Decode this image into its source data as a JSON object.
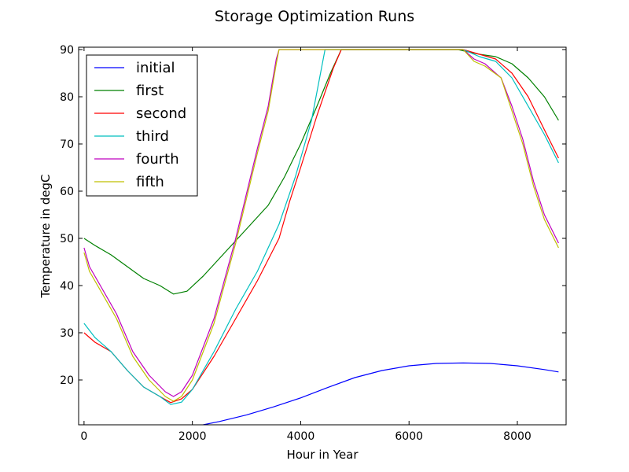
{
  "chart_data": {
    "type": "line",
    "title": "Storage Optimization Runs",
    "xlabel": "Hour in Year",
    "ylabel": "Temperature in degC",
    "xlim": [
      -100,
      8900
    ],
    "ylim": [
      10.5,
      90.5
    ],
    "xticks": [
      0,
      2000,
      4000,
      6000,
      8000
    ],
    "yticks": [
      20,
      30,
      40,
      50,
      60,
      70,
      80,
      90
    ],
    "grid": false,
    "legend_position": "top-left",
    "series": [
      {
        "name": "initial",
        "color": "#0000ff",
        "x": [
          2200,
          2500,
          3000,
          3500,
          4000,
          4500,
          5000,
          5500,
          6000,
          6500,
          7000,
          7500,
          8000,
          8500,
          8760
        ],
        "y": [
          10.5,
          11.2,
          12.6,
          14.3,
          16.2,
          18.4,
          20.5,
          22.0,
          23.0,
          23.5,
          23.6,
          23.5,
          23.0,
          22.2,
          21.7
        ]
      },
      {
        "name": "first",
        "color": "#008000",
        "x": [
          0,
          200,
          500,
          800,
          1100,
          1400,
          1650,
          1900,
          2200,
          2600,
          3000,
          3400,
          3700,
          4000,
          4300,
          4550,
          4750,
          5000,
          5500,
          6000,
          6500,
          6900,
          7100,
          7300,
          7600,
          7900,
          8200,
          8500,
          8760
        ],
        "y": [
          50,
          48.5,
          46.5,
          44,
          41.5,
          40,
          38.2,
          38.8,
          42,
          47,
          52,
          57,
          63,
          70,
          78,
          85,
          90,
          90,
          90,
          90,
          90,
          90,
          89.5,
          89,
          88.5,
          87,
          84,
          80,
          75
        ]
      },
      {
        "name": "second",
        "color": "#ff0000",
        "x": [
          0,
          200,
          500,
          800,
          1100,
          1400,
          1600,
          1800,
          2000,
          2400,
          2800,
          3200,
          3600,
          3800,
          4000,
          4300,
          4600,
          4750,
          5000,
          5500,
          6000,
          6500,
          7000,
          7300,
          7600,
          7900,
          8200,
          8500,
          8760
        ],
        "y": [
          30,
          28,
          26,
          22,
          18.5,
          16.5,
          15.2,
          16,
          18,
          25,
          33,
          41,
          50,
          58,
          65,
          76,
          86,
          90,
          90,
          90,
          90,
          90,
          90,
          89,
          88,
          85,
          80,
          73,
          67
        ]
      },
      {
        "name": "third",
        "color": "#00bfbf",
        "x": [
          0,
          200,
          500,
          800,
          1100,
          1400,
          1600,
          1800,
          2000,
          2400,
          2800,
          3200,
          3600,
          3900,
          4200,
          4450,
          4600,
          5000,
          5500,
          6000,
          6500,
          7000,
          7300,
          7600,
          7900,
          8200,
          8500,
          8760
        ],
        "y": [
          32,
          29,
          26,
          22,
          18.5,
          16.5,
          14.8,
          15.3,
          18,
          26,
          35,
          43,
          53,
          63,
          75,
          90,
          90,
          90,
          90,
          90,
          90,
          90,
          88.5,
          87.5,
          84,
          78,
          72,
          66
        ]
      },
      {
        "name": "fourth",
        "color": "#bf00bf",
        "x": [
          0,
          100,
          300,
          600,
          900,
          1200,
          1500,
          1650,
          1800,
          2000,
          2400,
          2800,
          3200,
          3400,
          3550,
          3600,
          4000,
          5000,
          6000,
          7000,
          7200,
          7400,
          7700,
          7900,
          8100,
          8300,
          8500,
          8760
        ],
        "y": [
          48,
          44,
          40,
          34,
          26,
          21,
          17.5,
          16.5,
          17.5,
          21,
          33,
          50,
          69,
          78,
          88,
          90,
          90,
          90,
          90,
          90,
          88,
          87,
          84,
          78,
          71,
          62,
          55,
          49
        ]
      },
      {
        "name": "fifth",
        "color": "#bfbf00",
        "x": [
          0,
          100,
          300,
          600,
          900,
          1200,
          1500,
          1650,
          1800,
          2000,
          2400,
          2800,
          3200,
          3400,
          3550,
          3600,
          4000,
          5000,
          6000,
          7000,
          7200,
          7400,
          7700,
          7900,
          8100,
          8300,
          8500,
          8760
        ],
        "y": [
          47,
          43,
          39,
          33,
          25,
          20,
          16.5,
          15.5,
          16.5,
          20,
          32,
          49,
          68,
          77,
          87,
          90,
          90,
          90,
          90,
          90,
          87.5,
          86.5,
          84,
          77,
          70,
          61,
          54,
          48
        ]
      }
    ]
  }
}
